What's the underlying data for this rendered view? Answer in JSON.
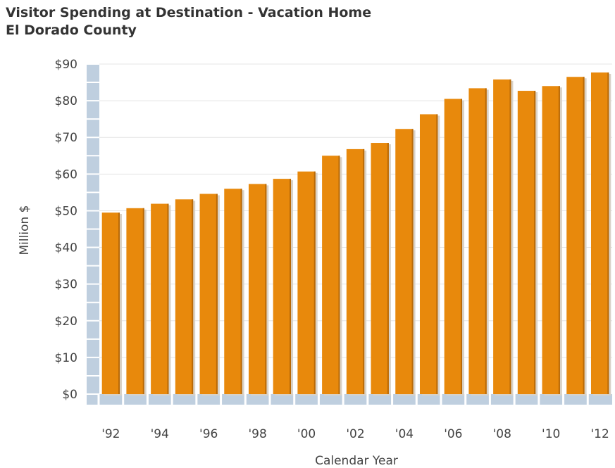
{
  "chart_data": {
    "type": "bar",
    "title": "Visitor Spending at Destination - Vacation Home",
    "subtitle": "El Dorado County",
    "xlabel": "Calendar Year",
    "ylabel": "Million $",
    "ylim": [
      0,
      90
    ],
    "yticks": [
      "$0",
      "$10",
      "$20",
      "$30",
      "$40",
      "$50",
      "$60",
      "$70",
      "$80",
      "$90"
    ],
    "categories": [
      "'92",
      "'93",
      "'94",
      "'95",
      "'96",
      "'97",
      "'98",
      "'99",
      "'00",
      "'01",
      "'02",
      "'03",
      "'04",
      "'05",
      "'06",
      "'07",
      "'08",
      "'09",
      "'10",
      "'11",
      "'12"
    ],
    "xtick_labels": [
      "'92",
      "'94",
      "'96",
      "'98",
      "'00",
      "'02",
      "'04",
      "'06",
      "'08",
      "'10",
      "'12"
    ],
    "values": [
      49.5,
      50.7,
      51.9,
      53.1,
      54.6,
      56.0,
      57.3,
      58.7,
      60.7,
      65.0,
      66.8,
      68.5,
      72.3,
      76.3,
      80.5,
      83.4,
      85.8,
      82.7,
      84.0,
      86.5,
      87.7
    ],
    "grid": true,
    "legend": "none",
    "colors": {
      "bar": "#e8890c",
      "bar_shade": "#b96a08",
      "axis_band": "#bfcfdf",
      "grid": "#e4e4e4"
    }
  }
}
